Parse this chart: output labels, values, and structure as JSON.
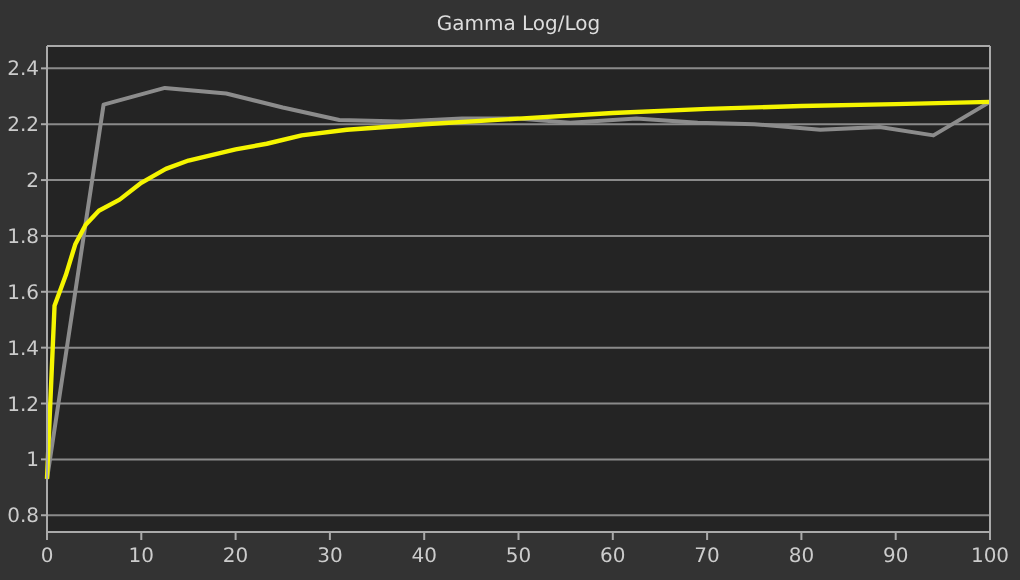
{
  "chart_data": {
    "type": "line",
    "title": "Gamma Log/Log",
    "xlim": [
      0,
      100
    ],
    "xticks": [
      0,
      10,
      20,
      30,
      40,
      50,
      60,
      70,
      80,
      90,
      100
    ],
    "ylim": [
      0.74,
      2.48
    ],
    "yticks": [
      0.8,
      1,
      1.2,
      1.4,
      1.6,
      1.8,
      2,
      2.2,
      2.4
    ],
    "grid": "y",
    "marker": "none",
    "series": [
      {
        "color": "#8c8c8c",
        "x": [
          0,
          6,
          12.5,
          19,
          25,
          31,
          37.5,
          44,
          50,
          55.5,
          62.5,
          69,
          75,
          82,
          88.3,
          94,
          100
        ],
        "values": [
          0.93,
          2.27,
          2.33,
          2.31,
          2.26,
          2.215,
          2.21,
          2.22,
          2.22,
          2.205,
          2.22,
          2.205,
          2.2,
          2.18,
          2.19,
          2.16,
          2.28
        ]
      },
      {
        "color": "#f5f500",
        "x": [
          0,
          0.8,
          2,
          3,
          4.1,
          5.5,
          7.7,
          10,
          12.6,
          15,
          20,
          23.3,
          27,
          31.8,
          40,
          50,
          60,
          70,
          80,
          90,
          100
        ],
        "values": [
          0.93,
          1.55,
          1.66,
          1.77,
          1.84,
          1.89,
          1.93,
          1.99,
          2.04,
          2.07,
          2.11,
          2.13,
          2.16,
          2.18,
          2.2,
          2.22,
          2.24,
          2.255,
          2.265,
          2.272,
          2.28
        ]
      }
    ]
  }
}
